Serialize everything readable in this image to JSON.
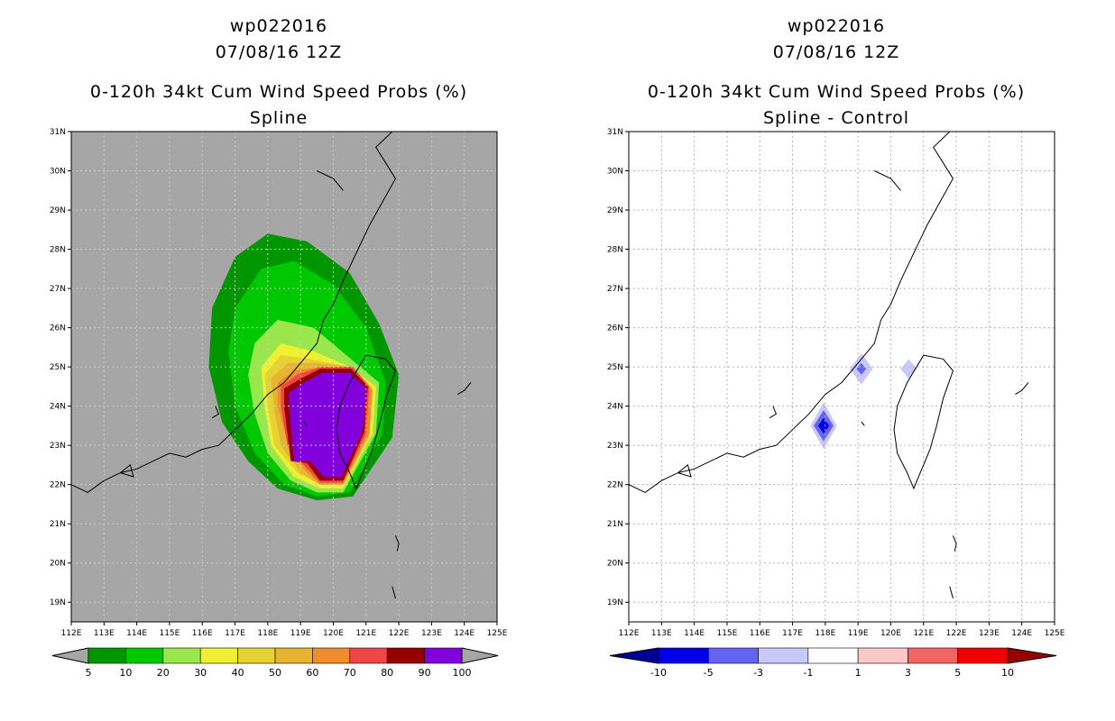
{
  "colors": {
    "land_bg": "#a6a6a6",
    "grid": "#c8c8c8",
    "coast": "#000000",
    "prob_fills": [
      "#009600",
      "#00c800",
      "#99e64d",
      "#f0f032",
      "#e6d232",
      "#e6b432",
      "#f08c2d",
      "#f04646",
      "#960000",
      "#8200dc"
    ],
    "diff_fills": [
      "#000096",
      "#0000e6",
      "#6464f0",
      "#c8c8fa",
      "#ffffff",
      "#fac8c8",
      "#f06464",
      "#f00000",
      "#960000"
    ]
  },
  "panels": [
    {
      "id": "left",
      "title_line1": "wp022016",
      "title_line2": "07/08/16 12Z",
      "title_line3": "0-120h 34kt Cum Wind Speed Probs (%)",
      "title_line4": "Spline"
    },
    {
      "id": "right",
      "title_line1": "wp022016",
      "title_line2": "07/08/16 12Z",
      "title_line3": "0-120h 34kt Cum Wind Speed Probs (%)",
      "title_line4": "Spline - Control"
    }
  ],
  "chart_data": [
    {
      "type": "heatmap",
      "title": "0-120h 34kt Cum Wind Speed Probs (%) Spline",
      "xlim": [
        112,
        125
      ],
      "ylim": [
        18.5,
        31
      ],
      "x_ticks": [
        "112E",
        "113E",
        "114E",
        "115E",
        "116E",
        "117E",
        "118E",
        "119E",
        "120E",
        "121E",
        "122E",
        "123E",
        "124E",
        "125E"
      ],
      "y_ticks": [
        "19N",
        "20N",
        "21N",
        "22N",
        "23N",
        "24N",
        "25N",
        "26N",
        "27N",
        "28N",
        "29N",
        "30N",
        "31N"
      ],
      "colorbar": {
        "labels": [
          "5",
          "10",
          "20",
          "30",
          "40",
          "50",
          "60",
          "70",
          "80",
          "90",
          "100"
        ]
      },
      "contours": [
        {
          "level": "5-10",
          "points": [
            [
              116.3,
              26.5
            ],
            [
              117,
              27.8
            ],
            [
              118,
              28.4
            ],
            [
              119.2,
              28.2
            ],
            [
              120.5,
              27.4
            ],
            [
              121.4,
              26.1
            ],
            [
              122,
              24.8
            ],
            [
              121.8,
              23.2
            ],
            [
              120.6,
              21.7
            ],
            [
              119.5,
              21.6
            ],
            [
              118.3,
              21.9
            ],
            [
              117.4,
              22.6
            ],
            [
              116.6,
              23.6
            ],
            [
              116.2,
              25
            ]
          ]
        },
        {
          "level": "10-20",
          "points": [
            [
              117,
              26.5
            ],
            [
              117.8,
              27.5
            ],
            [
              118.8,
              27.7
            ],
            [
              120,
              27.1
            ],
            [
              121,
              26
            ],
            [
              121.6,
              24.6
            ],
            [
              121.5,
              23.3
            ],
            [
              120.5,
              21.8
            ],
            [
              119.5,
              21.7
            ],
            [
              118.5,
              22
            ],
            [
              117.6,
              22.8
            ],
            [
              117,
              24
            ],
            [
              116.8,
              25.4
            ]
          ]
        },
        {
          "level": "20-30",
          "points": [
            [
              117.6,
              25.6
            ],
            [
              118.3,
              26.2
            ],
            [
              119.4,
              26
            ],
            [
              120.4,
              25.3
            ],
            [
              121.4,
              24.6
            ],
            [
              121.3,
              23.3
            ],
            [
              120.3,
              21.8
            ],
            [
              119.5,
              21.8
            ],
            [
              118.7,
              22.1
            ],
            [
              118,
              22.8
            ],
            [
              117.6,
              23.8
            ],
            [
              117.4,
              24.8
            ]
          ]
        },
        {
          "level": "30-40",
          "points": [
            [
              117.8,
              25
            ],
            [
              118.4,
              25.6
            ],
            [
              119.4,
              25.4
            ],
            [
              120.5,
              25
            ],
            [
              121.3,
              24.5
            ],
            [
              121.2,
              23.3
            ],
            [
              120.3,
              21.9
            ],
            [
              119.6,
              21.9
            ],
            [
              118.8,
              22.2
            ],
            [
              118.1,
              23
            ],
            [
              117.9,
              24
            ]
          ]
        },
        {
          "level": "40-50",
          "points": [
            [
              117.9,
              24.8
            ],
            [
              118.4,
              25.3
            ],
            [
              119.3,
              25.2
            ],
            [
              120.5,
              25
            ],
            [
              121.2,
              24.5
            ],
            [
              121.1,
              23.2
            ],
            [
              120.3,
              22
            ],
            [
              119.6,
              22
            ],
            [
              118.9,
              22.3
            ],
            [
              118.2,
              23
            ],
            [
              118,
              24
            ]
          ]
        },
        {
          "level": "50-60",
          "points": [
            [
              118.1,
              24.7
            ],
            [
              118.6,
              25.1
            ],
            [
              119.5,
              25.1
            ],
            [
              120.6,
              25
            ],
            [
              121.2,
              24.4
            ],
            [
              121.1,
              23.3
            ],
            [
              120.3,
              22
            ],
            [
              119.6,
              22
            ],
            [
              119,
              22.3
            ],
            [
              118.4,
              23
            ],
            [
              118.2,
              23.9
            ]
          ]
        },
        {
          "level": "60-70",
          "points": [
            [
              118.3,
              24.6
            ],
            [
              118.8,
              24.9
            ],
            [
              119.6,
              25
            ],
            [
              120.6,
              25
            ],
            [
              121.2,
              24.4
            ],
            [
              121.1,
              23.3
            ],
            [
              120.3,
              22
            ],
            [
              119.6,
              22
            ],
            [
              119.1,
              22.4
            ],
            [
              118.6,
              23.1
            ],
            [
              118.3,
              24
            ]
          ]
        },
        {
          "level": "70-80",
          "points": [
            [
              118.4,
              24.5
            ],
            [
              118.9,
              24.8
            ],
            [
              119.6,
              25
            ],
            [
              120.6,
              25
            ],
            [
              121.1,
              24.5
            ],
            [
              121,
              23.3
            ],
            [
              120.3,
              22.05
            ],
            [
              119.6,
              22.05
            ],
            [
              119.1,
              22.5
            ],
            [
              118.6,
              23
            ],
            [
              118.4,
              24
            ]
          ]
        },
        {
          "level": "80-90",
          "points": [
            [
              118.5,
              24.45
            ],
            [
              119,
              24.7
            ],
            [
              119.6,
              24.95
            ],
            [
              120.55,
              24.95
            ],
            [
              121.05,
              24.5
            ],
            [
              120.95,
              23.35
            ],
            [
              120.3,
              22.1
            ],
            [
              119.6,
              22.1
            ],
            [
              119.2,
              22.55
            ],
            [
              118.7,
              22.6
            ],
            [
              118.5,
              24
            ]
          ]
        },
        {
          "level": "90-100",
          "points": [
            [
              118.65,
              24.35
            ],
            [
              119.1,
              24.6
            ],
            [
              119.65,
              24.85
            ],
            [
              120.5,
              24.85
            ],
            [
              121,
              24.45
            ],
            [
              120.9,
              23.4
            ],
            [
              120.25,
              22.2
            ],
            [
              119.7,
              22.2
            ],
            [
              119.3,
              22.6
            ],
            [
              118.8,
              22.6
            ],
            [
              118.65,
              24
            ]
          ]
        }
      ]
    },
    {
      "type": "heatmap",
      "title": "0-120h 34kt Cum Wind Speed Probs (%) Spline - Control",
      "xlim": [
        112,
        125
      ],
      "ylim": [
        18.5,
        31
      ],
      "x_ticks": [
        "112E",
        "113E",
        "114E",
        "115E",
        "116E",
        "117E",
        "118E",
        "119E",
        "120E",
        "121E",
        "122E",
        "123E",
        "124E",
        "125E"
      ],
      "y_ticks": [
        "19N",
        "20N",
        "21N",
        "22N",
        "23N",
        "24N",
        "25N",
        "26N",
        "27N",
        "28N",
        "29N",
        "30N",
        "31N"
      ],
      "colorbar": {
        "labels": [
          "-10",
          "-5",
          "-3",
          "-1",
          "1",
          "3",
          "5",
          "10"
        ]
      },
      "contours": [
        {
          "level": "-3 to -1",
          "points": [
            [
              117.95,
              24.1
            ],
            [
              118.35,
              23.5
            ],
            [
              117.95,
              22.9
            ],
            [
              117.55,
              23.5
            ]
          ]
        },
        {
          "level": "-5 to -3",
          "points": [
            [
              117.95,
              23.9
            ],
            [
              118.25,
              23.5
            ],
            [
              117.95,
              23.1
            ],
            [
              117.65,
              23.5
            ]
          ]
        },
        {
          "level": "-10 to -5",
          "points": [
            [
              117.95,
              23.7
            ],
            [
              118.12,
              23.5
            ],
            [
              117.95,
              23.3
            ],
            [
              117.78,
              23.5
            ]
          ]
        },
        {
          "level": "-3 to -1",
          "points": [
            [
              119.1,
              25.35
            ],
            [
              119.45,
              24.95
            ],
            [
              119.1,
              24.55
            ],
            [
              118.75,
              24.95
            ]
          ]
        },
        {
          "level": "-5 to -3",
          "points": [
            [
              119.1,
              25.1
            ],
            [
              119.25,
              24.95
            ],
            [
              119.1,
              24.8
            ],
            [
              118.95,
              24.95
            ]
          ]
        },
        {
          "level": "-3 to -1",
          "points": [
            [
              120.55,
              25.2
            ],
            [
              120.8,
              24.95
            ],
            [
              120.55,
              24.7
            ],
            [
              120.3,
              24.95
            ]
          ]
        }
      ]
    }
  ]
}
